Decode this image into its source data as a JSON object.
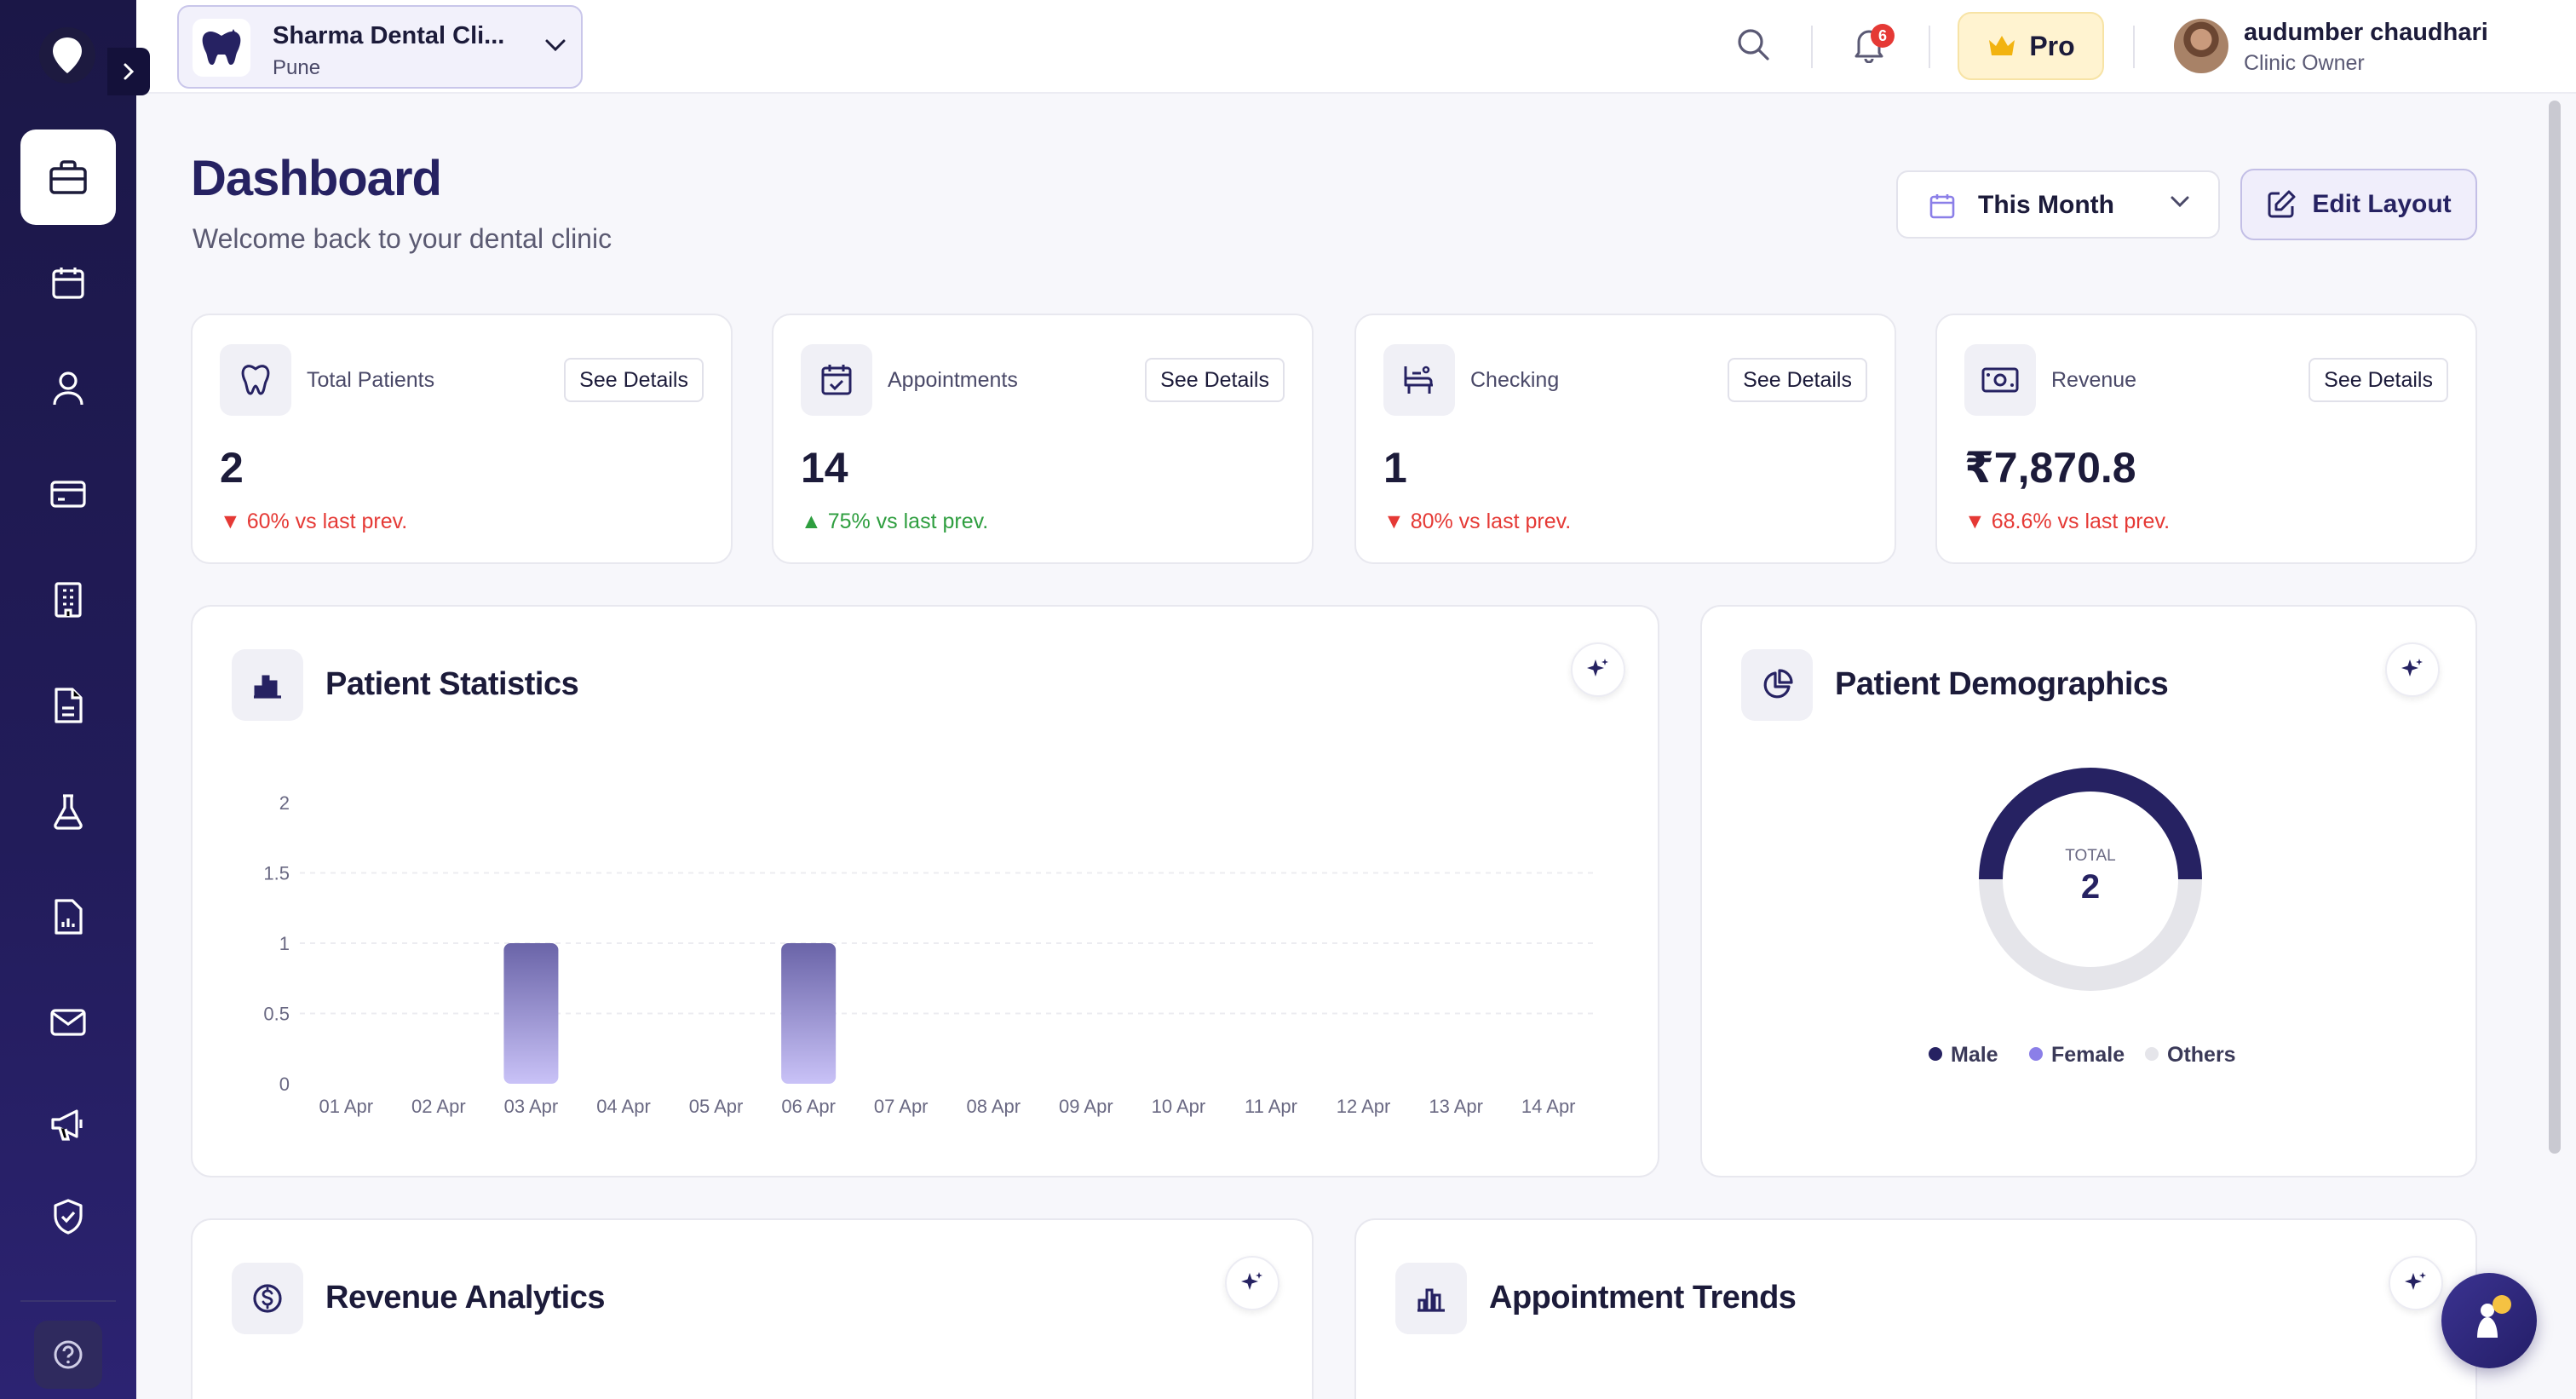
{
  "sidebar": {
    "items": [
      {
        "name": "dashboard",
        "icon": "briefcase-icon",
        "active": true
      },
      {
        "name": "appointments",
        "icon": "calendar-icon"
      },
      {
        "name": "patients",
        "icon": "user-icon"
      },
      {
        "name": "billing",
        "icon": "credit-card-icon"
      },
      {
        "name": "clinics",
        "icon": "building-icon"
      },
      {
        "name": "documents",
        "icon": "document-icon"
      },
      {
        "name": "lab",
        "icon": "flask-icon"
      },
      {
        "name": "reports",
        "icon": "report-icon"
      },
      {
        "name": "messages",
        "icon": "mail-icon"
      },
      {
        "name": "marketing",
        "icon": "megaphone-icon"
      },
      {
        "name": "security",
        "icon": "shield-check-icon"
      }
    ],
    "help_icon": "help-circle-icon"
  },
  "header": {
    "clinic_name": "Sharma Dental Cli...",
    "clinic_city": "Pune",
    "notification_count": "6",
    "pro_label": "Pro",
    "user_name": "audumber chaudhari",
    "user_role": "Clinic Owner"
  },
  "page": {
    "title": "Dashboard",
    "subtitle": "Welcome back to your dental clinic",
    "period_label": "This Month",
    "edit_layout_label": "Edit Layout"
  },
  "colors": {
    "primary": "#262262",
    "sidebar": "#1b1747",
    "bar_top": "#6a64a8",
    "bar_bottom": "#c9c2f7",
    "male": "#262262",
    "female": "#8b7fe8",
    "others": "#e5e5ea",
    "down": "#e53935",
    "up": "#2e9e3f"
  },
  "stats": [
    {
      "label": "Total Patients",
      "value": "2",
      "change": "▼ 60% vs last prev.",
      "trend": "down",
      "details": "See Details",
      "icon": "tooth-icon"
    },
    {
      "label": "Appointments",
      "value": "14",
      "change": "▲ 75% vs last prev.",
      "trend": "up",
      "details": "See Details",
      "icon": "calendar-check-icon"
    },
    {
      "label": "Checking",
      "value": "1",
      "change": "▼ 80% vs last prev.",
      "trend": "down",
      "details": "See Details",
      "icon": "dental-chair-icon"
    },
    {
      "label": "Revenue",
      "value": "₹7,870.8",
      "change": "▼ 68.6% vs last prev.",
      "trend": "down",
      "details": "See Details",
      "icon": "cash-icon"
    }
  ],
  "panels": {
    "patient_statistics": "Patient Statistics",
    "patient_demographics": "Patient Demographics",
    "revenue_analytics": "Revenue Analytics",
    "appointment_trends": "Appointment Trends"
  },
  "chart_data": [
    {
      "type": "bar",
      "title": "Patient Statistics",
      "categories": [
        "01 Apr",
        "02 Apr",
        "03 Apr",
        "04 Apr",
        "05 Apr",
        "06 Apr",
        "07 Apr",
        "08 Apr",
        "09 Apr",
        "10 Apr",
        "11 Apr",
        "12 Apr",
        "13 Apr",
        "14 Apr"
      ],
      "values": [
        0,
        0,
        1,
        0,
        0,
        1,
        0,
        0,
        0,
        0,
        0,
        0,
        0,
        0
      ],
      "yticks": [
        "0",
        "0.5",
        "1",
        "1.5",
        "2"
      ],
      "ylim": [
        0,
        2
      ],
      "grid": true
    },
    {
      "type": "pie",
      "title": "Patient Demographics",
      "center_label": "TOTAL",
      "total": "2",
      "labels": [
        "Male",
        "Female",
        "Others"
      ],
      "values": [
        1,
        0,
        1
      ],
      "legend_position": "bottom"
    }
  ]
}
